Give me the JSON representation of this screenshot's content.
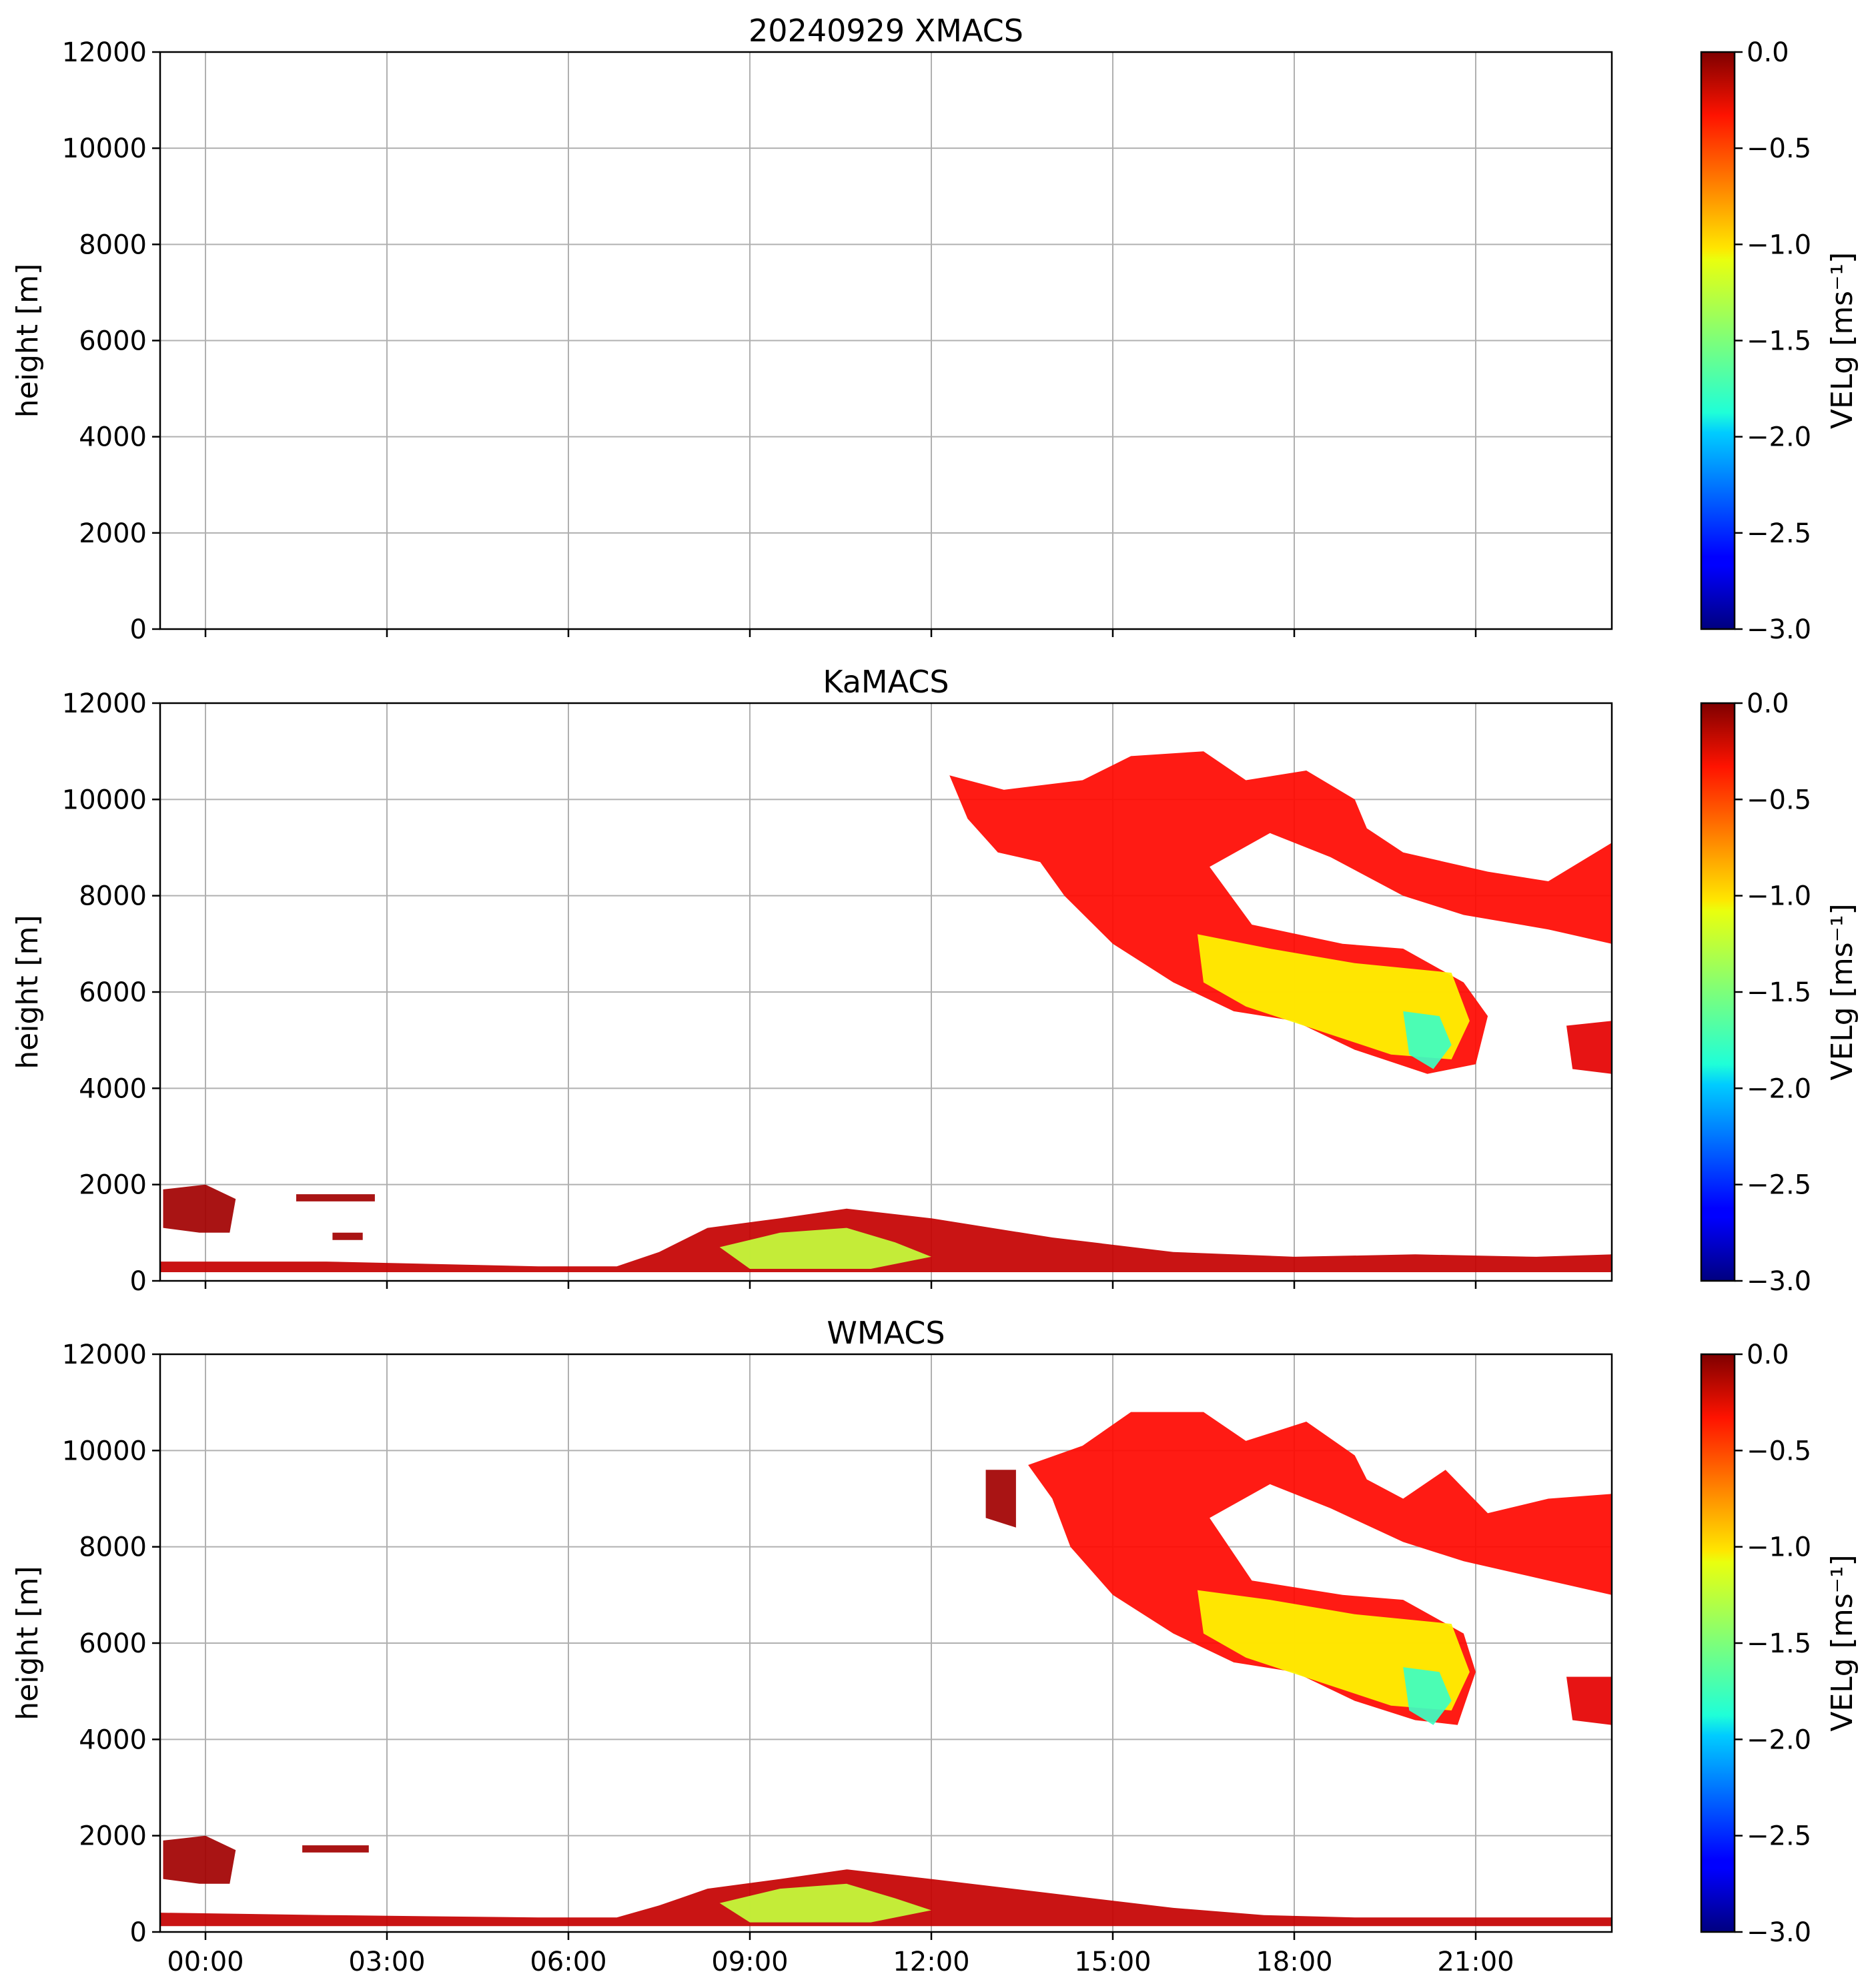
{
  "chart_data": [
    {
      "type": "heatmap",
      "panel": "top",
      "title": "20240929 XMACS",
      "xlabel": "",
      "ylabel": "height [m]",
      "xlim_hours": [
        -0.75,
        23.25
      ],
      "ylim": [
        0,
        12000
      ],
      "yticks": [
        0,
        2000,
        4000,
        6000,
        8000,
        10000,
        12000
      ],
      "xticks_hours": [
        0,
        3,
        6,
        9,
        12,
        15,
        18,
        21
      ],
      "xtick_labels": [],
      "grid": true,
      "colorbar": {
        "label": "VELg [ms⁻¹]",
        "range": [
          -3.0,
          0.0
        ],
        "ticks": [
          "0.0",
          "−0.5",
          "−1.0",
          "−1.5",
          "−2.0",
          "−2.5",
          "−3.0"
        ]
      },
      "echo_regions": []
    },
    {
      "type": "heatmap",
      "panel": "middle",
      "title": "KaMACS",
      "xlabel": "",
      "ylabel": "height [m]",
      "xlim_hours": [
        -0.75,
        23.25
      ],
      "ylim": [
        0,
        12000
      ],
      "yticks": [
        0,
        2000,
        4000,
        6000,
        8000,
        10000,
        12000
      ],
      "xticks_hours": [
        0,
        3,
        6,
        9,
        12,
        15,
        18,
        21
      ],
      "xtick_labels": [],
      "grid": true,
      "colorbar": {
        "label": "VELg [ms⁻¹]",
        "range": [
          -3.0,
          0.0
        ],
        "ticks": [
          "0.0",
          "−0.5",
          "−1.0",
          "−1.5",
          "−2.0",
          "−2.5",
          "−3.0"
        ]
      },
      "echo_regions": [
        {
          "name": "upper-cirrus-band",
          "vel": -0.4,
          "poly": [
            [
              12.3,
              10500
            ],
            [
              13.2,
              10200
            ],
            [
              14.5,
              10400
            ],
            [
              15.3,
              10900
            ],
            [
              16.5,
              11000
            ],
            [
              17.2,
              10400
            ],
            [
              18.2,
              10600
            ],
            [
              19.0,
              10000
            ],
            [
              19.2,
              9400
            ],
            [
              19.8,
              8900
            ],
            [
              20.5,
              8700
            ],
            [
              21.2,
              8500
            ],
            [
              22.2,
              8300
            ],
            [
              23.25,
              9100
            ],
            [
              23.25,
              7000
            ],
            [
              22.2,
              7300
            ],
            [
              20.8,
              7600
            ],
            [
              19.8,
              8000
            ],
            [
              18.6,
              8800
            ],
            [
              17.6,
              9300
            ],
            [
              16.6,
              8600
            ],
            [
              17.3,
              7400
            ],
            [
              18.8,
              7000
            ],
            [
              19.8,
              6900
            ],
            [
              20.8,
              6200
            ],
            [
              21.2,
              5500
            ],
            [
              21.0,
              4500
            ],
            [
              20.2,
              4300
            ],
            [
              19.0,
              4800
            ],
            [
              18.0,
              5400
            ],
            [
              17.0,
              5600
            ],
            [
              16.0,
              6200
            ],
            [
              15.0,
              7000
            ],
            [
              14.2,
              8000
            ],
            [
              13.8,
              8700
            ],
            [
              13.1,
              8900
            ],
            [
              12.6,
              9600
            ]
          ]
        },
        {
          "name": "fall-streak-core",
          "vel": -1.1,
          "poly": [
            [
              16.4,
              7200
            ],
            [
              17.6,
              6900
            ],
            [
              19.0,
              6600
            ],
            [
              20.6,
              6400
            ],
            [
              20.9,
              5400
            ],
            [
              20.6,
              4600
            ],
            [
              19.6,
              4700
            ],
            [
              18.4,
              5200
            ],
            [
              17.2,
              5700
            ],
            [
              16.5,
              6200
            ]
          ]
        },
        {
          "name": "fall-streak-fast",
          "vel": -1.7,
          "poly": [
            [
              19.8,
              5600
            ],
            [
              20.4,
              5500
            ],
            [
              20.6,
              4900
            ],
            [
              20.3,
              4400
            ],
            [
              19.9,
              4700
            ]
          ]
        },
        {
          "name": "small-cell-right",
          "vel": -0.3,
          "poly": [
            [
              22.5,
              5300
            ],
            [
              23.25,
              5400
            ],
            [
              23.25,
              4300
            ],
            [
              22.6,
              4400
            ]
          ]
        },
        {
          "name": "boundary-layer-echo",
          "vel": -0.2,
          "poly": [
            [
              -0.75,
              400
            ],
            [
              2.0,
              400
            ],
            [
              5.5,
              300
            ],
            [
              6.8,
              300
            ],
            [
              7.5,
              600
            ],
            [
              8.3,
              1100
            ],
            [
              9.5,
              1300
            ],
            [
              10.6,
              1500
            ],
            [
              12.0,
              1300
            ],
            [
              14.0,
              900
            ],
            [
              16.0,
              600
            ],
            [
              18.0,
              500
            ],
            [
              20.0,
              550
            ],
            [
              22.0,
              500
            ],
            [
              23.25,
              550
            ],
            [
              23.25,
              180
            ],
            [
              -0.75,
              180
            ]
          ]
        },
        {
          "name": "boundary-layer-fast",
          "vel": -1.3,
          "poly": [
            [
              8.5,
              700
            ],
            [
              9.5,
              1000
            ],
            [
              10.6,
              1100
            ],
            [
              11.4,
              800
            ],
            [
              12.0,
              500
            ],
            [
              11.0,
              250
            ],
            [
              9.0,
              250
            ]
          ]
        },
        {
          "name": "low-cloud-blob-1",
          "vel": -0.1,
          "poly": [
            [
              -0.7,
              1900
            ],
            [
              0.0,
              2000
            ],
            [
              0.5,
              1700
            ],
            [
              0.4,
              1000
            ],
            [
              -0.1,
              1000
            ],
            [
              -0.7,
              1100
            ]
          ]
        },
        {
          "name": "low-cloud-blob-2",
          "vel": -0.1,
          "poly": [
            [
              1.5,
              1800
            ],
            [
              2.8,
              1800
            ],
            [
              2.8,
              1650
            ],
            [
              1.5,
              1650
            ]
          ]
        },
        {
          "name": "low-cloud-blob-3",
          "vel": -0.1,
          "poly": [
            [
              2.1,
              1000
            ],
            [
              2.6,
              1000
            ],
            [
              2.6,
              850
            ],
            [
              2.1,
              850
            ]
          ]
        }
      ]
    },
    {
      "type": "heatmap",
      "panel": "bottom",
      "title": "WMACS",
      "xlabel": "",
      "ylabel": "height [m]",
      "xlim_hours": [
        -0.75,
        23.25
      ],
      "ylim": [
        0,
        12000
      ],
      "yticks": [
        0,
        2000,
        4000,
        6000,
        8000,
        10000,
        12000
      ],
      "xticks_hours": [
        0,
        3,
        6,
        9,
        12,
        15,
        18,
        21
      ],
      "xtick_labels": [
        "00:00",
        "03:00",
        "06:00",
        "09:00",
        "12:00",
        "15:00",
        "18:00",
        "21:00"
      ],
      "grid": true,
      "colorbar": {
        "label": "VELg [ms⁻¹]",
        "range": [
          -3.0,
          0.0
        ],
        "ticks": [
          "0.0",
          "−0.5",
          "−1.0",
          "−1.5",
          "−2.0",
          "−2.5",
          "−3.0"
        ]
      },
      "echo_regions": [
        {
          "name": "upper-cirrus-band",
          "vel": -0.4,
          "poly": [
            [
              13.6,
              9700
            ],
            [
              14.5,
              10100
            ],
            [
              15.3,
              10800
            ],
            [
              16.5,
              10800
            ],
            [
              17.2,
              10200
            ],
            [
              18.2,
              10600
            ],
            [
              19.0,
              9900
            ],
            [
              19.2,
              9400
            ],
            [
              19.8,
              9000
            ],
            [
              20.5,
              9600
            ],
            [
              21.2,
              8700
            ],
            [
              22.2,
              9000
            ],
            [
              23.25,
              9100
            ],
            [
              23.25,
              7000
            ],
            [
              22.2,
              7300
            ],
            [
              20.8,
              7700
            ],
            [
              19.8,
              8100
            ],
            [
              18.6,
              8800
            ],
            [
              17.6,
              9300
            ],
            [
              16.6,
              8600
            ],
            [
              17.3,
              7300
            ],
            [
              18.8,
              7000
            ],
            [
              19.8,
              6900
            ],
            [
              20.8,
              6200
            ],
            [
              21.0,
              5400
            ],
            [
              20.7,
              4300
            ],
            [
              20.0,
              4400
            ],
            [
              19.0,
              4800
            ],
            [
              18.0,
              5400
            ],
            [
              17.0,
              5600
            ],
            [
              16.0,
              6200
            ],
            [
              15.0,
              7000
            ],
            [
              14.3,
              8000
            ],
            [
              14.0,
              9000
            ]
          ]
        },
        {
          "name": "fall-streak-core",
          "vel": -1.1,
          "poly": [
            [
              16.4,
              7100
            ],
            [
              17.6,
              6900
            ],
            [
              19.0,
              6600
            ],
            [
              20.6,
              6400
            ],
            [
              20.9,
              5400
            ],
            [
              20.6,
              4600
            ],
            [
              19.6,
              4700
            ],
            [
              18.4,
              5200
            ],
            [
              17.2,
              5700
            ],
            [
              16.5,
              6200
            ]
          ]
        },
        {
          "name": "fall-streak-fast",
          "vel": -1.7,
          "poly": [
            [
              19.8,
              5500
            ],
            [
              20.4,
              5400
            ],
            [
              20.6,
              4800
            ],
            [
              20.3,
              4300
            ],
            [
              19.9,
              4600
            ]
          ]
        },
        {
          "name": "small-cell-left",
          "vel": -0.1,
          "poly": [
            [
              12.9,
              9600
            ],
            [
              13.4,
              9600
            ],
            [
              13.4,
              8400
            ],
            [
              12.9,
              8600
            ]
          ]
        },
        {
          "name": "small-cell-right",
          "vel": -0.3,
          "poly": [
            [
              22.5,
              5300
            ],
            [
              23.25,
              5300
            ],
            [
              23.25,
              4300
            ],
            [
              22.6,
              4400
            ]
          ]
        },
        {
          "name": "boundary-layer-echo",
          "vel": -0.2,
          "poly": [
            [
              -0.75,
              400
            ],
            [
              2.0,
              350
            ],
            [
              5.5,
              300
            ],
            [
              6.8,
              300
            ],
            [
              7.5,
              550
            ],
            [
              8.3,
              900
            ],
            [
              9.5,
              1100
            ],
            [
              10.6,
              1300
            ],
            [
              12.0,
              1100
            ],
            [
              14.0,
              800
            ],
            [
              16.0,
              500
            ],
            [
              17.5,
              350
            ],
            [
              19.0,
              300
            ],
            [
              23.25,
              300
            ],
            [
              23.25,
              120
            ],
            [
              -0.75,
              120
            ]
          ]
        },
        {
          "name": "boundary-layer-fast",
          "vel": -1.3,
          "poly": [
            [
              8.5,
              600
            ],
            [
              9.5,
              900
            ],
            [
              10.6,
              1000
            ],
            [
              11.4,
              700
            ],
            [
              12.0,
              450
            ],
            [
              11.0,
              200
            ],
            [
              9.0,
              200
            ]
          ]
        },
        {
          "name": "low-cloud-blob-1",
          "vel": -0.1,
          "poly": [
            [
              -0.7,
              1900
            ],
            [
              0.0,
              2000
            ],
            [
              0.5,
              1700
            ],
            [
              0.4,
              1000
            ],
            [
              -0.1,
              1000
            ],
            [
              -0.7,
              1100
            ]
          ]
        },
        {
          "name": "low-cloud-blob-2",
          "vel": -0.1,
          "poly": [
            [
              1.6,
              1800
            ],
            [
              2.7,
              1800
            ],
            [
              2.7,
              1650
            ],
            [
              1.6,
              1650
            ]
          ]
        }
      ]
    }
  ]
}
